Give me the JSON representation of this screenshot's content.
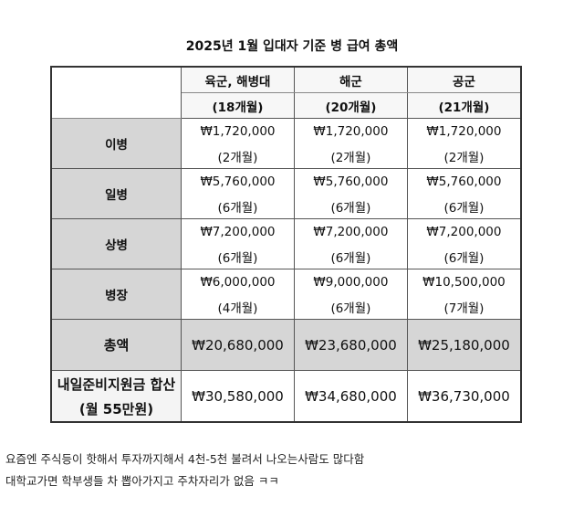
{
  "title": "2025년 1월 입대자 기준 병 급여 총액",
  "columns": [
    {
      "name": "육군, 해병대",
      "period": "(18개월)"
    },
    {
      "name": "해군",
      "period": "(20개월)"
    },
    {
      "name": "공군",
      "period": "(21개월)"
    }
  ],
  "rows": [
    {
      "rank": "이병",
      "values": [
        "₩1,720,000",
        "₩1,720,000",
        "₩1,720,000"
      ],
      "periods": [
        "(2개월)",
        "(2개월)",
        "(2개월)"
      ]
    },
    {
      "rank": "일병",
      "values": [
        "₩5,760,000",
        "₩5,760,000",
        "₩5,760,000"
      ],
      "periods": [
        "(6개월)",
        "(6개월)",
        "(6개월)"
      ]
    },
    {
      "rank": "상병",
      "values": [
        "₩7,200,000",
        "₩7,200,000",
        "₩7,200,000"
      ],
      "periods": [
        "(6개월)",
        "(6개월)",
        "(6개월)"
      ]
    },
    {
      "rank": "병장",
      "values": [
        "₩6,000,000",
        "₩9,000,000",
        "₩10,500,000"
      ],
      "periods": [
        "(4개월)",
        "(6개월)",
        "(7개월)"
      ]
    }
  ],
  "total": {
    "label": "총액",
    "values": [
      "₩20,680,000",
      "₩23,680,000",
      "₩25,180,000"
    ]
  },
  "combined": {
    "label": "내일준비지원금 합산",
    "sublabel": "(월 55만원)",
    "values": [
      "₩30,580,000",
      "₩34,680,000",
      "₩36,730,000"
    ]
  },
  "comments": [
    "요즘엔 주식등이 핫해서   투자까지해서 4천-5천 불려서 나오는사람도 많다함",
    "대학교가면 학부생들 차 뽑아가지고 주차자리가 없음 ㅋㅋ"
  ]
}
